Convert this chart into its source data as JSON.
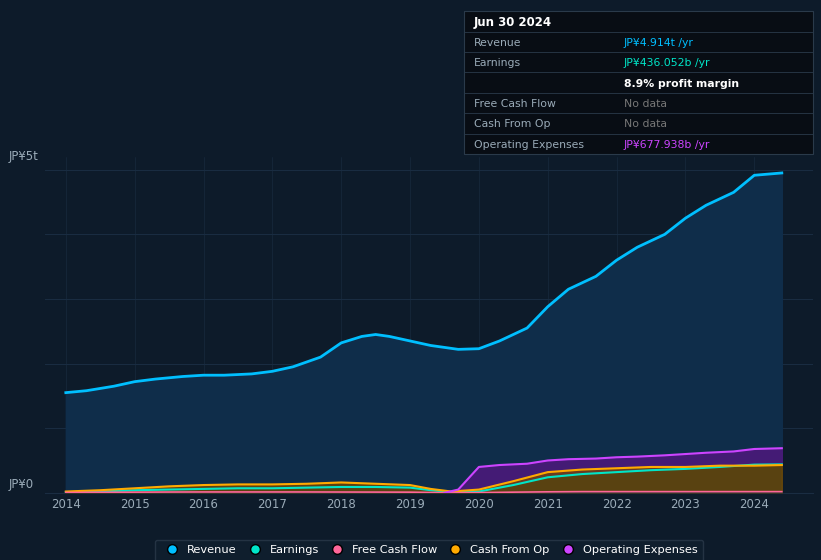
{
  "background_color": "#0d1b2a",
  "plot_bg_color": "#0d1b2a",
  "title_box": {
    "date": "Jun 30 2024",
    "rows": [
      {
        "label": "Revenue",
        "value": "JP¥4.914t /yr",
        "value_color": "#00bfff"
      },
      {
        "label": "Earnings",
        "value": "JP¥436.052b /yr",
        "value_color": "#00e5c8"
      },
      {
        "label": "",
        "value": "8.9% profit margin",
        "value_color": "#ffffff"
      },
      {
        "label": "Free Cash Flow",
        "value": "No data",
        "value_color": "#777777"
      },
      {
        "label": "Cash From Op",
        "value": "No data",
        "value_color": "#777777"
      },
      {
        "label": "Operating Expenses",
        "value": "JP¥677.938b /yr",
        "value_color": "#cc44ff"
      }
    ],
    "box_bg": "#080d14",
    "box_border": "#2a3a4a"
  },
  "ylabel_top": "JP¥5t",
  "ylabel_bottom": "JP¥0",
  "x_ticks": [
    2014,
    2015,
    2016,
    2017,
    2018,
    2019,
    2020,
    2021,
    2022,
    2023,
    2024
  ],
  "revenue_x": [
    2014.0,
    2014.3,
    2014.7,
    2015.0,
    2015.3,
    2015.7,
    2016.0,
    2016.3,
    2016.7,
    2017.0,
    2017.3,
    2017.7,
    2018.0,
    2018.3,
    2018.5,
    2018.7,
    2019.0,
    2019.3,
    2019.7,
    2020.0,
    2020.3,
    2020.7,
    2021.0,
    2021.3,
    2021.7,
    2022.0,
    2022.3,
    2022.7,
    2023.0,
    2023.3,
    2023.7,
    2024.0,
    2024.4
  ],
  "revenue_y": [
    1.55,
    1.58,
    1.65,
    1.72,
    1.76,
    1.8,
    1.82,
    1.82,
    1.84,
    1.88,
    1.95,
    2.1,
    2.32,
    2.42,
    2.45,
    2.42,
    2.35,
    2.28,
    2.22,
    2.23,
    2.35,
    2.55,
    2.88,
    3.15,
    3.35,
    3.6,
    3.8,
    4.0,
    4.25,
    4.45,
    4.65,
    4.914,
    4.95
  ],
  "earnings_x": [
    2014.0,
    2014.5,
    2015.0,
    2015.5,
    2016.0,
    2016.5,
    2017.0,
    2017.5,
    2018.0,
    2018.5,
    2019.0,
    2019.3,
    2019.6,
    2020.0,
    2020.5,
    2021.0,
    2021.5,
    2022.0,
    2022.5,
    2023.0,
    2023.5,
    2024.0,
    2024.4
  ],
  "earnings_y": [
    0.01,
    0.02,
    0.04,
    0.05,
    0.06,
    0.07,
    0.07,
    0.08,
    0.09,
    0.09,
    0.08,
    0.04,
    0.01,
    0.02,
    0.12,
    0.24,
    0.29,
    0.32,
    0.35,
    0.37,
    0.4,
    0.436,
    0.44
  ],
  "cash_from_op_x": [
    2014.0,
    2014.5,
    2015.0,
    2015.5,
    2016.0,
    2016.5,
    2017.0,
    2017.5,
    2018.0,
    2018.5,
    2019.0,
    2019.3,
    2019.6,
    2020.0,
    2020.5,
    2021.0,
    2021.5,
    2022.0,
    2022.5,
    2023.0,
    2023.5,
    2024.0,
    2024.4
  ],
  "cash_from_op_y": [
    0.02,
    0.04,
    0.07,
    0.1,
    0.12,
    0.13,
    0.13,
    0.14,
    0.16,
    0.14,
    0.12,
    0.06,
    0.02,
    0.05,
    0.18,
    0.32,
    0.36,
    0.38,
    0.4,
    0.4,
    0.42,
    0.42,
    0.43
  ],
  "operating_expenses_x": [
    2019.5,
    2019.7,
    2020.0,
    2020.3,
    2020.7,
    2021.0,
    2021.3,
    2021.7,
    2022.0,
    2022.3,
    2022.7,
    2023.0,
    2023.3,
    2023.7,
    2024.0,
    2024.4
  ],
  "operating_expenses_y": [
    0.0,
    0.05,
    0.4,
    0.43,
    0.45,
    0.5,
    0.52,
    0.53,
    0.55,
    0.56,
    0.58,
    0.6,
    0.62,
    0.64,
    0.678,
    0.69
  ],
  "free_cash_flow_x": [
    2014.0,
    2014.5,
    2015.0,
    2015.5,
    2016.0,
    2016.5,
    2017.0,
    2017.5,
    2018.0,
    2018.5,
    2019.0,
    2019.3,
    2019.5,
    2020.0,
    2020.5,
    2021.0,
    2021.5,
    2022.0,
    2022.5,
    2023.0,
    2023.5,
    2024.0,
    2024.4
  ],
  "free_cash_flow_y": [
    0.005,
    0.008,
    0.01,
    0.012,
    0.013,
    0.013,
    0.013,
    0.013,
    0.012,
    0.011,
    0.01,
    0.005,
    0.001,
    0.003,
    0.01,
    0.015,
    0.018,
    0.018,
    0.018,
    0.018,
    0.018,
    0.018,
    0.018
  ],
  "ylim": [
    0,
    5.2
  ],
  "xlim": [
    2013.7,
    2024.85
  ],
  "grid_color": "#1a2d42",
  "tick_color": "#9aabb8",
  "legend": [
    {
      "label": "Revenue",
      "color": "#00bfff"
    },
    {
      "label": "Earnings",
      "color": "#00e5c8"
    },
    {
      "label": "Free Cash Flow",
      "color": "#ff6699"
    },
    {
      "label": "Cash From Op",
      "color": "#ffaa00"
    },
    {
      "label": "Operating Expenses",
      "color": "#cc44ff"
    }
  ]
}
